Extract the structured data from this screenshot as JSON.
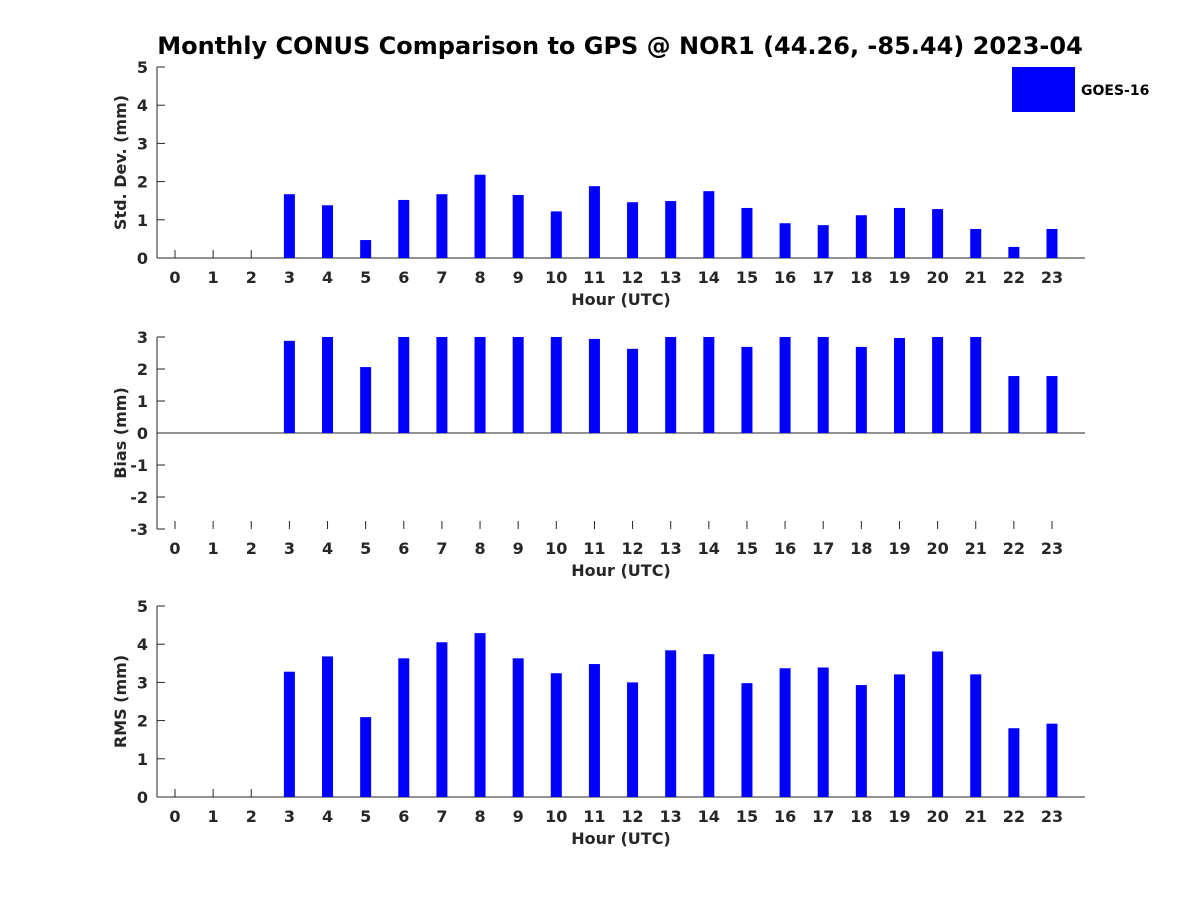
{
  "chart_data": [
    {
      "type": "bar",
      "title": "Monthly CONUS Comparison to GPS @ NOR1 (44.26, -85.44) 2023-04",
      "xlabel": "Hour (UTC)",
      "ylabel": "Std. Dev. (mm)",
      "ylim": [
        0,
        5
      ],
      "yticks": [
        "0",
        "1",
        "2",
        "3",
        "4",
        "5"
      ],
      "categories": [
        "0",
        "1",
        "2",
        "3",
        "4",
        "5",
        "6",
        "7",
        "8",
        "9",
        "10",
        "11",
        "12",
        "13",
        "14",
        "15",
        "16",
        "17",
        "18",
        "19",
        "20",
        "21",
        "22",
        "23"
      ],
      "legend": "top-right",
      "grid": false,
      "series": [
        {
          "name": "GOES-16",
          "color": "#0000ff",
          "values": [
            null,
            null,
            null,
            1.67,
            1.38,
            0.47,
            1.52,
            1.67,
            2.18,
            1.65,
            1.22,
            1.88,
            1.46,
            1.49,
            1.75,
            1.31,
            0.91,
            0.86,
            1.12,
            1.31,
            1.28,
            0.76,
            0.29,
            0.76
          ]
        }
      ]
    },
    {
      "type": "bar",
      "xlabel": "Hour (UTC)",
      "ylabel": "Bias (mm)",
      "ylim": [
        -3,
        3
      ],
      "yticks": [
        "-3",
        "-2",
        "-1",
        "0",
        "1",
        "2",
        "3"
      ],
      "categories": [
        "0",
        "1",
        "2",
        "3",
        "4",
        "5",
        "6",
        "7",
        "8",
        "9",
        "10",
        "11",
        "12",
        "13",
        "14",
        "15",
        "16",
        "17",
        "18",
        "19",
        "20",
        "21",
        "22",
        "23"
      ],
      "grid": false,
      "series": [
        {
          "name": "GOES-16",
          "color": "#0000ff",
          "values": [
            null,
            null,
            null,
            2.88,
            3.0,
            2.06,
            3.0,
            3.0,
            3.0,
            3.0,
            3.0,
            2.94,
            2.63,
            3.0,
            3.0,
            2.69,
            3.0,
            3.0,
            2.69,
            2.97,
            3.0,
            3.0,
            1.78,
            1.78
          ]
        }
      ]
    },
    {
      "type": "bar",
      "xlabel": "Hour (UTC)",
      "ylabel": "RMS (mm)",
      "ylim": [
        0,
        5
      ],
      "yticks": [
        "0",
        "1",
        "2",
        "3",
        "4",
        "5"
      ],
      "categories": [
        "0",
        "1",
        "2",
        "3",
        "4",
        "5",
        "6",
        "7",
        "8",
        "9",
        "10",
        "11",
        "12",
        "13",
        "14",
        "15",
        "16",
        "17",
        "18",
        "19",
        "20",
        "21",
        "22",
        "23"
      ],
      "grid": false,
      "series": [
        {
          "name": "GOES-16",
          "color": "#0000ff",
          "values": [
            null,
            null,
            null,
            3.28,
            3.68,
            2.09,
            3.63,
            4.05,
            4.29,
            3.63,
            3.24,
            3.48,
            3.0,
            3.84,
            3.74,
            2.98,
            3.37,
            3.39,
            2.93,
            3.21,
            3.81,
            3.21,
            1.8,
            1.92
          ]
        }
      ]
    }
  ]
}
